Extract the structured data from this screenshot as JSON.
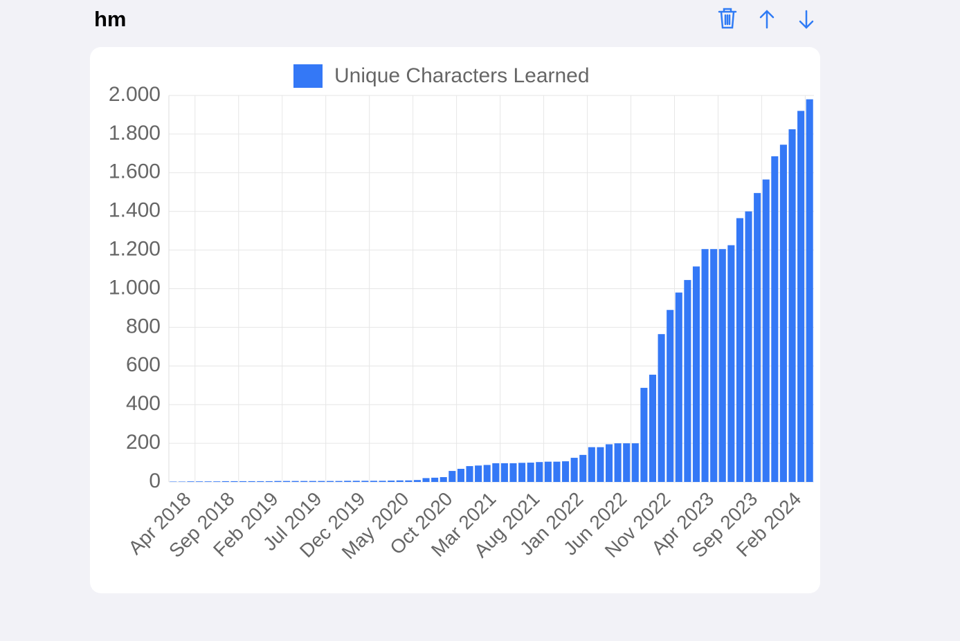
{
  "header": {
    "title": "hm"
  },
  "chart_data": {
    "type": "bar",
    "categories": [
      "Apr 2018",
      null,
      null,
      null,
      null,
      "Sep 2018",
      null,
      null,
      null,
      null,
      "Feb 2019",
      null,
      null,
      null,
      null,
      "Jul 2019",
      null,
      null,
      null,
      null,
      "Dec 2019",
      null,
      null,
      null,
      null,
      "May 2020",
      null,
      null,
      null,
      null,
      "Oct 2020",
      null,
      null,
      null,
      null,
      "Mar 2021",
      null,
      null,
      null,
      null,
      "Aug 2021",
      null,
      null,
      null,
      null,
      "Jan 2022",
      null,
      null,
      null,
      null,
      "Jun 2022",
      null,
      null,
      null,
      null,
      "Nov 2022",
      null,
      null,
      null,
      null,
      "Apr 2023",
      null,
      null,
      null,
      null,
      "Sep 2023",
      null,
      null,
      null,
      null,
      "Feb 2024",
      null,
      null,
      null
    ],
    "series": [
      {
        "name": "Unique Characters Learned",
        "color": "#3478f6",
        "values": [
          2,
          2,
          3,
          3,
          3,
          3,
          4,
          4,
          4,
          4,
          4,
          4,
          5,
          5,
          5,
          5,
          5,
          5,
          5,
          5,
          6,
          6,
          6,
          6,
          6,
          7,
          8,
          8,
          10,
          20,
          22,
          25,
          57,
          68,
          82,
          85,
          88,
          97,
          97,
          97,
          99,
          100,
          103,
          105,
          105,
          107,
          125,
          140,
          180,
          180,
          195,
          200,
          200,
          200,
          487,
          555,
          765,
          890,
          980,
          1045,
          1115,
          1205,
          1205,
          1205,
          1225,
          1365,
          1400,
          1495,
          1565,
          1685,
          1745,
          1825,
          1920,
          1980
        ]
      }
    ],
    "ylim": [
      0,
      2000
    ],
    "yticks": [
      0,
      200,
      400,
      600,
      800,
      {
        "value": 1000,
        "label": "1.000"
      },
      {
        "value": 1200,
        "label": "1.200"
      },
      {
        "value": 1400,
        "label": "1.400"
      },
      {
        "value": 1600,
        "label": "1.600"
      },
      {
        "value": 1800,
        "label": "1.800"
      },
      {
        "value": 2000,
        "label": "2.000"
      }
    ],
    "grid": true,
    "legend": "top"
  }
}
